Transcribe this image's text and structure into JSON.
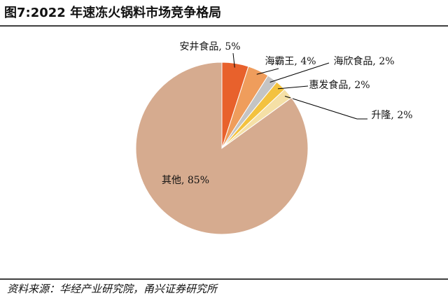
{
  "chart_data": {
    "type": "pie",
    "title": "图7:2022 年速冻火锅料市场竞争格局",
    "source": "资料来源：华经产业研究院，甬兴证券研究所",
    "values": [
      5,
      4,
      2,
      2,
      2,
      85
    ],
    "value_labels": [
      "安井食品, 5%",
      "海霸王, 4%",
      "海欣食品, 2%",
      "惠发食品, 2%",
      "升隆, 2%",
      "其他, 85%"
    ],
    "colors": [
      "#e8612c",
      "#ef9d5c",
      "#c4c4c4",
      "#f3c23f",
      "#f5e0a6",
      "#d6ab8f"
    ]
  }
}
